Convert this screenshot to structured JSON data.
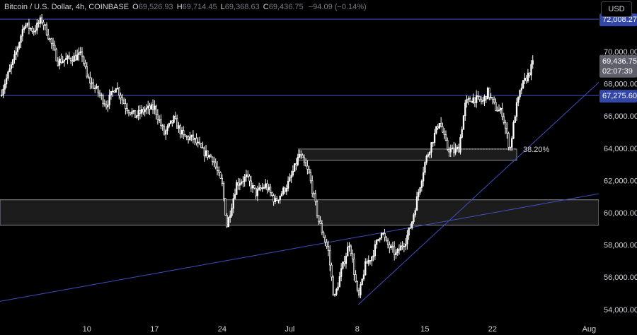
{
  "legend": {
    "symbol": "Bitcoin / U.S. Dollar, 4h, COINBASE",
    "o_label": "O",
    "o_value": "69,526.93",
    "h_label": "H",
    "h_value": "69,714.45",
    "l_label": "L",
    "l_value": "69,368.63",
    "c_label": "C",
    "c_value": "69,436.75",
    "change": "−94.09 (−0.14%)"
  },
  "currency_button": "USD",
  "colors": {
    "background": "#000000",
    "candle": "#ffffff",
    "line": "#3f4fbf",
    "axis_text": "#d1d4dc",
    "tag_bg": "#3347a8",
    "price_tag_bg": "#5d606b",
    "zone_border": "#8a8d96",
    "zone_fill": "#1c1c1c"
  },
  "chart_data": {
    "type": "candlestick",
    "y_ticks": [
      "70,000.00",
      "68,000.00",
      "66,000.00",
      "64,000.00",
      "62,000.00",
      "60,000.00",
      "58,000.00",
      "56,000.00",
      "54,000.00"
    ],
    "y_tick_values": [
      70000,
      68000,
      66000,
      64000,
      62000,
      60000,
      58000,
      56000,
      54000
    ],
    "ylim": [
      53200,
      73200
    ],
    "x_ticks": [
      "10",
      "17",
      "24",
      "Jul",
      "8",
      "15",
      "22",
      "Aug"
    ],
    "x_tick_days": [
      10,
      17,
      24,
      31,
      38,
      45,
      52,
      62
    ],
    "x_domain_days": [
      1,
      63
    ],
    "last_day": 56.3,
    "horizontal_levels": [
      {
        "label": "72,008.27",
        "value": 72008.27
      },
      {
        "label": "67,275.60",
        "value": 67275.6
      }
    ],
    "current_price": {
      "label": "69,436.75",
      "value": 69436.75,
      "countdown": "02:07:39"
    },
    "zones": [
      {
        "name": "support-zone",
        "from": 59230,
        "to": 60800,
        "x_from_day": 1,
        "x_to_day": 63
      },
      {
        "name": "fib-zone",
        "from": 63250,
        "to": 63950,
        "x_from_day": 31.9,
        "x_to_day": 54.5
      }
    ],
    "fib_level": {
      "label": "38.20%",
      "value": 63950
    },
    "trendlines": [
      {
        "name": "long-trendline",
        "x1_day": 1,
        "y1": 54500,
        "x2_day": 66,
        "y2": 61500
      },
      {
        "name": "short-trendline",
        "x1_day": 38.1,
        "y1": 54300,
        "x2_day": 66,
        "y2": 69750
      }
    ],
    "path_points": [
      [
        1,
        67300
      ],
      [
        2.5,
        69600
      ],
      [
        3.5,
        71700
      ],
      [
        4.5,
        71300
      ],
      [
        5.3,
        72000
      ],
      [
        6,
        71000
      ],
      [
        7,
        69400
      ],
      [
        8.5,
        69600
      ],
      [
        9.5,
        69800
      ],
      [
        10,
        68400
      ],
      [
        11,
        67600
      ],
      [
        12,
        66700
      ],
      [
        13,
        67900
      ],
      [
        14,
        66600
      ],
      [
        15,
        66000
      ],
      [
        16,
        66400
      ],
      [
        17,
        66500
      ],
      [
        18,
        64900
      ],
      [
        19,
        65800
      ],
      [
        20,
        64700
      ],
      [
        21,
        64600
      ],
      [
        22,
        63800
      ],
      [
        23,
        63400
      ],
      [
        24,
        61700
      ],
      [
        24.5,
        59200
      ],
      [
        25.5,
        61800
      ],
      [
        26.5,
        62200
      ],
      [
        27.5,
        61200
      ],
      [
        28.5,
        61700
      ],
      [
        29.5,
        60700
      ],
      [
        30.5,
        61500
      ],
      [
        31,
        62000
      ],
      [
        32,
        63600
      ],
      [
        32.5,
        63000
      ],
      [
        33,
        62400
      ],
      [
        34,
        59500
      ],
      [
        35,
        57600
      ],
      [
        35.6,
        54600
      ],
      [
        36.3,
        56300
      ],
      [
        37.2,
        58200
      ],
      [
        38.1,
        54600
      ],
      [
        38.8,
        56700
      ],
      [
        39.5,
        57300
      ],
      [
        40.5,
        58900
      ],
      [
        41,
        58100
      ],
      [
        42,
        57400
      ],
      [
        43,
        58300
      ],
      [
        43.6,
        59300
      ],
      [
        44.3,
        61200
      ],
      [
        45,
        63100
      ],
      [
        45.5,
        64000
      ],
      [
        46.5,
        65700
      ],
      [
        47.3,
        64000
      ],
      [
        48,
        63800
      ],
      [
        48.5,
        64000
      ],
      [
        49.2,
        66800
      ],
      [
        50,
        67100
      ],
      [
        51,
        66900
      ],
      [
        51.5,
        67500
      ],
      [
        52.3,
        66500
      ],
      [
        53,
        66200
      ],
      [
        53.8,
        63900
      ],
      [
        54.4,
        66400
      ],
      [
        55,
        67800
      ],
      [
        55.8,
        68700
      ],
      [
        56.3,
        69436.75
      ]
    ]
  }
}
